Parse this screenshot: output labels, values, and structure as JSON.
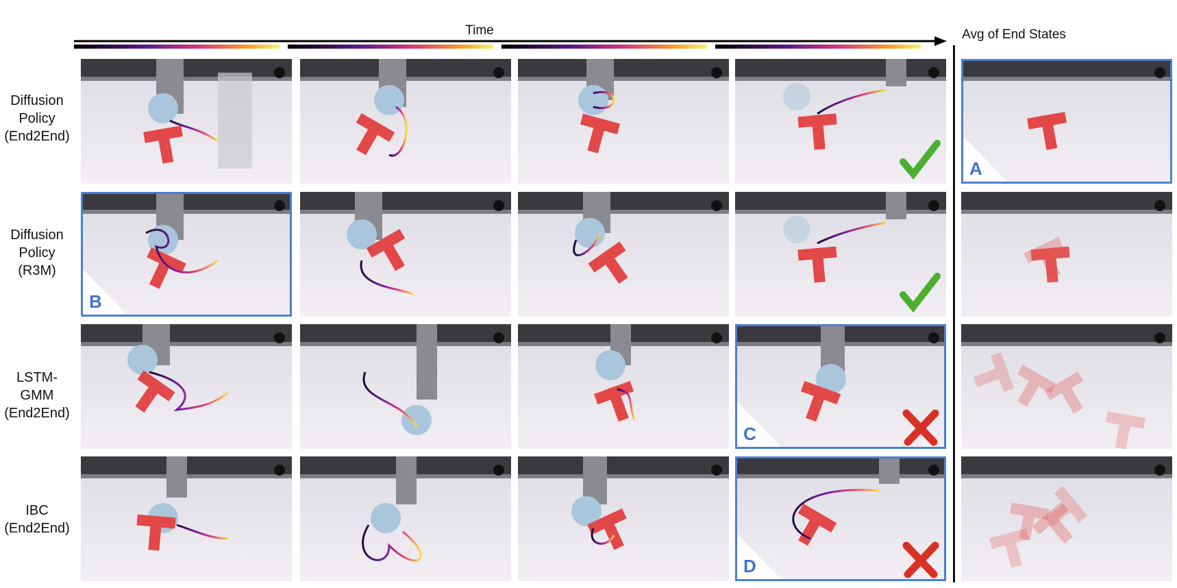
{
  "header": {
    "time_label": "Time",
    "avg_label": "Avg of End States"
  },
  "rows": [
    {
      "label_lines": [
        "Diffusion",
        "Policy",
        "(End2End)"
      ]
    },
    {
      "label_lines": [
        "Diffusion",
        "Policy",
        "(R3M)"
      ]
    },
    {
      "label_lines": [
        "LSTM-GMM",
        "(End2End)"
      ]
    },
    {
      "label_lines": [
        "IBC",
        "(End2End)"
      ]
    }
  ],
  "markers": {
    "A": "A",
    "B": "B",
    "C": "C",
    "D": "D"
  },
  "colors": {
    "highlight": "#4a7fd4",
    "success": "#4caf2f",
    "fail": "#d93025",
    "tblock": "#e04a4a"
  }
}
